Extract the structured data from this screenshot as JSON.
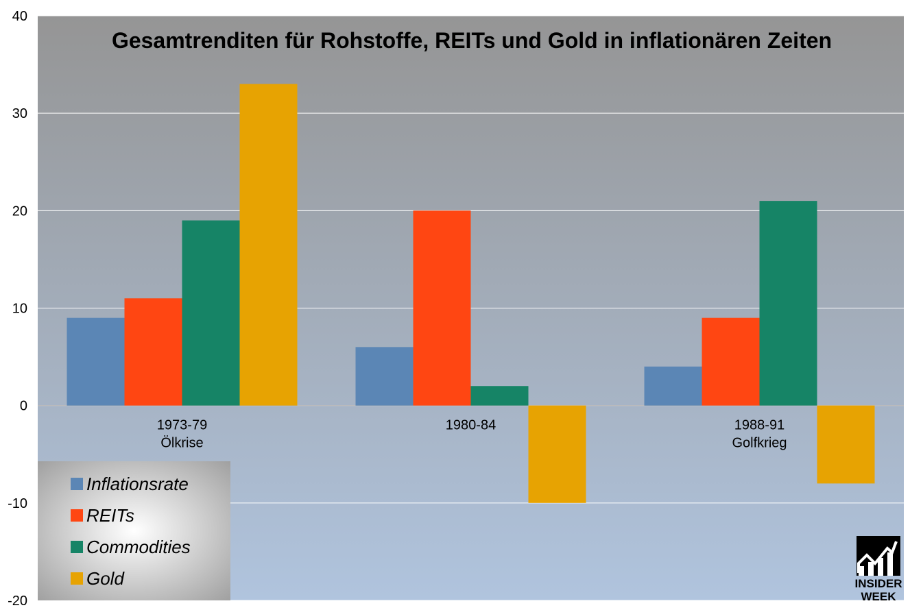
{
  "chart_data": {
    "type": "bar",
    "title": "Gesamtrenditen für Rohstoffe, REITs und Gold in inflationären Zeiten",
    "categories": [
      [
        "1973-79",
        "Ölkrise"
      ],
      [
        "1980-84"
      ],
      [
        "1988-91",
        "Golfkrieg"
      ]
    ],
    "series": [
      {
        "name": "Inflationsrate",
        "color": "#5b86b5",
        "values": [
          9,
          6,
          4
        ]
      },
      {
        "name": "REITs",
        "color": "#ff4612",
        "values": [
          11,
          20,
          9
        ]
      },
      {
        "name": "Commodities",
        "color": "#168466",
        "values": [
          19,
          2,
          21
        ]
      },
      {
        "name": "Gold",
        "color": "#e7a302",
        "values": [
          33,
          -10,
          -8
        ]
      }
    ],
    "ylim": [
      -20,
      40
    ],
    "yticks": [
      -20,
      -10,
      0,
      10,
      20,
      30,
      40
    ],
    "xlabel": "",
    "ylabel": "",
    "grid": true,
    "legend_position": "bottom-left"
  },
  "logo": {
    "line1": "INSIDER",
    "line2": "WEEK"
  }
}
